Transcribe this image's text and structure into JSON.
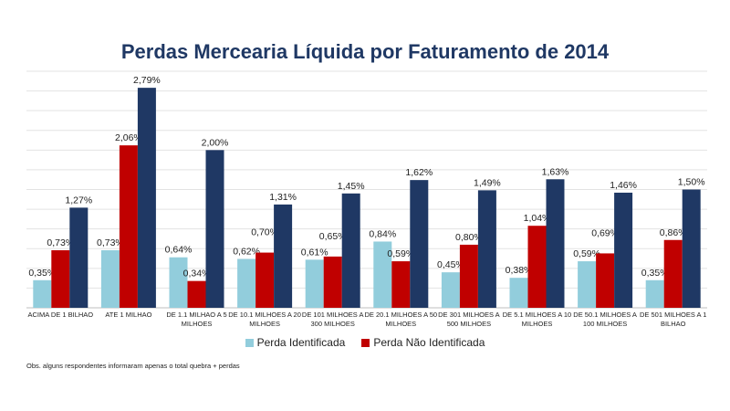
{
  "chart_data": {
    "type": "bar",
    "title": "Perdas Mercearia Líquida por Faturamento de 2014",
    "categories": [
      [
        "ACIMA DE 1 BILHAO"
      ],
      [
        "ATE 1 MILHAO"
      ],
      [
        "DE 1.1 MILHAO A 5",
        "MILHOES"
      ],
      [
        "DE 10.1 MILHOES A 20",
        "MILHOES"
      ],
      [
        "DE 101 MILHOES A",
        "300 MILHOES"
      ],
      [
        "DE 20.1 MILHOES A 50",
        "MILHOES"
      ],
      [
        "DE 301 MILHOES A",
        "500 MILHOES"
      ],
      [
        "DE 5.1 MILHOES A 10",
        "MILHOES"
      ],
      [
        "DE 50.1 MILHOES A",
        "100 MILHOES"
      ],
      [
        "DE 501 MILHOES A 1",
        "BILHAO"
      ]
    ],
    "series": [
      {
        "name": "Perda Identificada",
        "color": "#92cddc",
        "values": [
          0.35,
          0.73,
          0.64,
          0.62,
          0.61,
          0.84,
          0.45,
          0.38,
          0.59,
          0.35
        ],
        "labels": [
          "0,35%",
          "0,73%",
          "0,64%",
          "0,62%",
          "0,61%",
          "0,84%",
          "0,45%",
          "0,38%",
          "0,59%",
          "0,35%"
        ]
      },
      {
        "name": "Perda Não Identificada",
        "color": "#c00000",
        "values": [
          0.73,
          2.06,
          0.34,
          0.7,
          0.65,
          0.59,
          0.8,
          1.04,
          0.69,
          0.86
        ],
        "labels": [
          "0,73%",
          "2,06%",
          "0,34%",
          "0,70%",
          "0,65%",
          "0,59%",
          "0,80%",
          "1,04%",
          "0,69%",
          "0,86%"
        ]
      },
      {
        "color": "#1f3864",
        "values": [
          1.27,
          2.79,
          2.0,
          1.31,
          1.45,
          1.62,
          1.49,
          1.63,
          1.46,
          1.5
        ],
        "labels": [
          "1,27%",
          "2,79%",
          "2,00%",
          "1,31%",
          "1,45%",
          "1,62%",
          "1,49%",
          "1,63%",
          "1,46%",
          "1,50%"
        ]
      }
    ],
    "ylim": [
      0,
      3.0
    ],
    "grid": true,
    "legend": "bottom"
  },
  "note": "Obs. alguns respondentes informaram apenas  o total quebra + perdas"
}
